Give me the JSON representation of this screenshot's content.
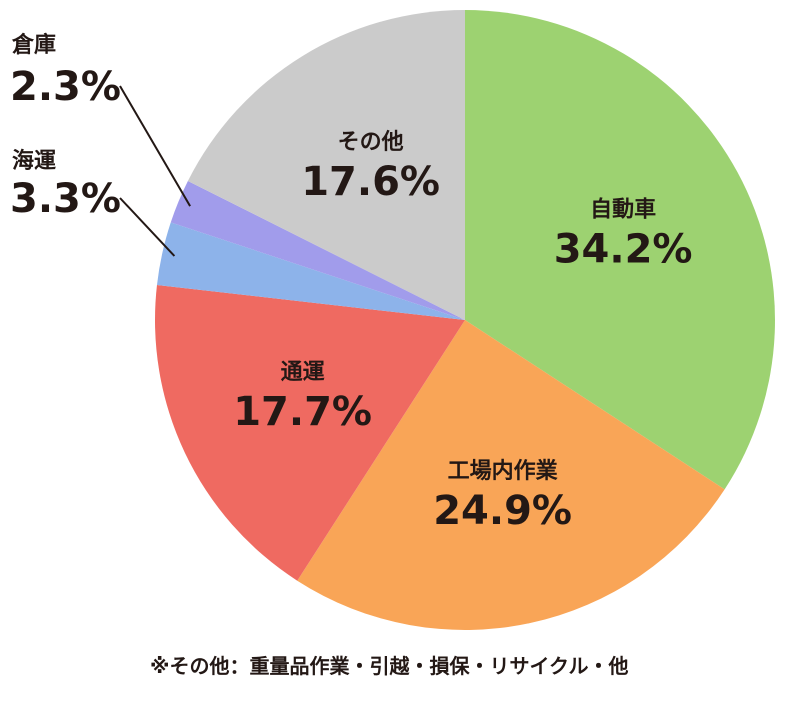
{
  "chart_data": {
    "type": "pie",
    "title": "",
    "start": "12 o'clock",
    "direction": "clockwise",
    "slices": [
      {
        "label": "自動車",
        "value": 34.2,
        "value_text": "34.2%",
        "color": "#9dd271",
        "label_placement": "inside"
      },
      {
        "label": "工場内作業",
        "value": 24.9,
        "value_text": "24.9%",
        "color": "#f9a557",
        "label_placement": "inside"
      },
      {
        "label": "通運",
        "value": 17.7,
        "value_text": "17.7%",
        "color": "#ef6a61",
        "label_placement": "inside"
      },
      {
        "label": "海運",
        "value": 3.3,
        "value_text": "3.3%",
        "color": "#8db3ea",
        "label_placement": "outside-left",
        "leader_line": true
      },
      {
        "label": "倉庫",
        "value": 2.3,
        "value_text": "2.3%",
        "color": "#a19ceb",
        "label_placement": "outside-left",
        "leader_line": true
      },
      {
        "label": "その他",
        "value": 17.6,
        "value_text": "17.6%",
        "color": "#cbcbcb",
        "label_placement": "inside"
      }
    ],
    "legend": "none",
    "footnote": "※その他：重量品作業・引越・損保・リサイクル・他"
  }
}
